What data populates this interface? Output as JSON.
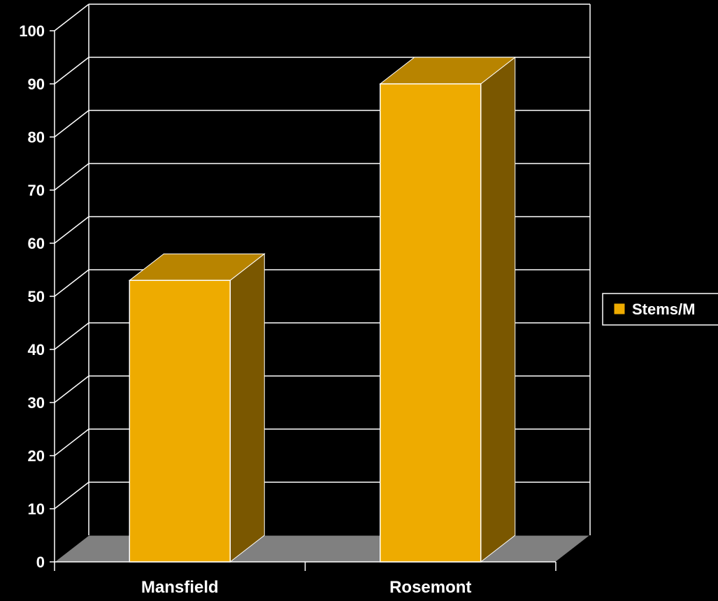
{
  "chart_data": {
    "type": "bar",
    "categories": [
      "Mansfield",
      "Rosemont"
    ],
    "series": [
      {
        "name": "Stems/M",
        "values": [
          53,
          90
        ]
      }
    ],
    "title": "",
    "xlabel": "",
    "ylabel": "",
    "ylim": [
      0,
      100
    ],
    "yticks": [
      "0",
      "10",
      "20",
      "30",
      "40",
      "50",
      "60",
      "70",
      "80",
      "90",
      "100"
    ],
    "grid": true,
    "legend": "right",
    "style": "3d",
    "colors": {
      "background": "#000000",
      "bar_front": "#eeab00",
      "bar_top": "#b88400",
      "bar_side": "#7a5700",
      "floor": "#808080",
      "grid": "#ffffff"
    }
  }
}
